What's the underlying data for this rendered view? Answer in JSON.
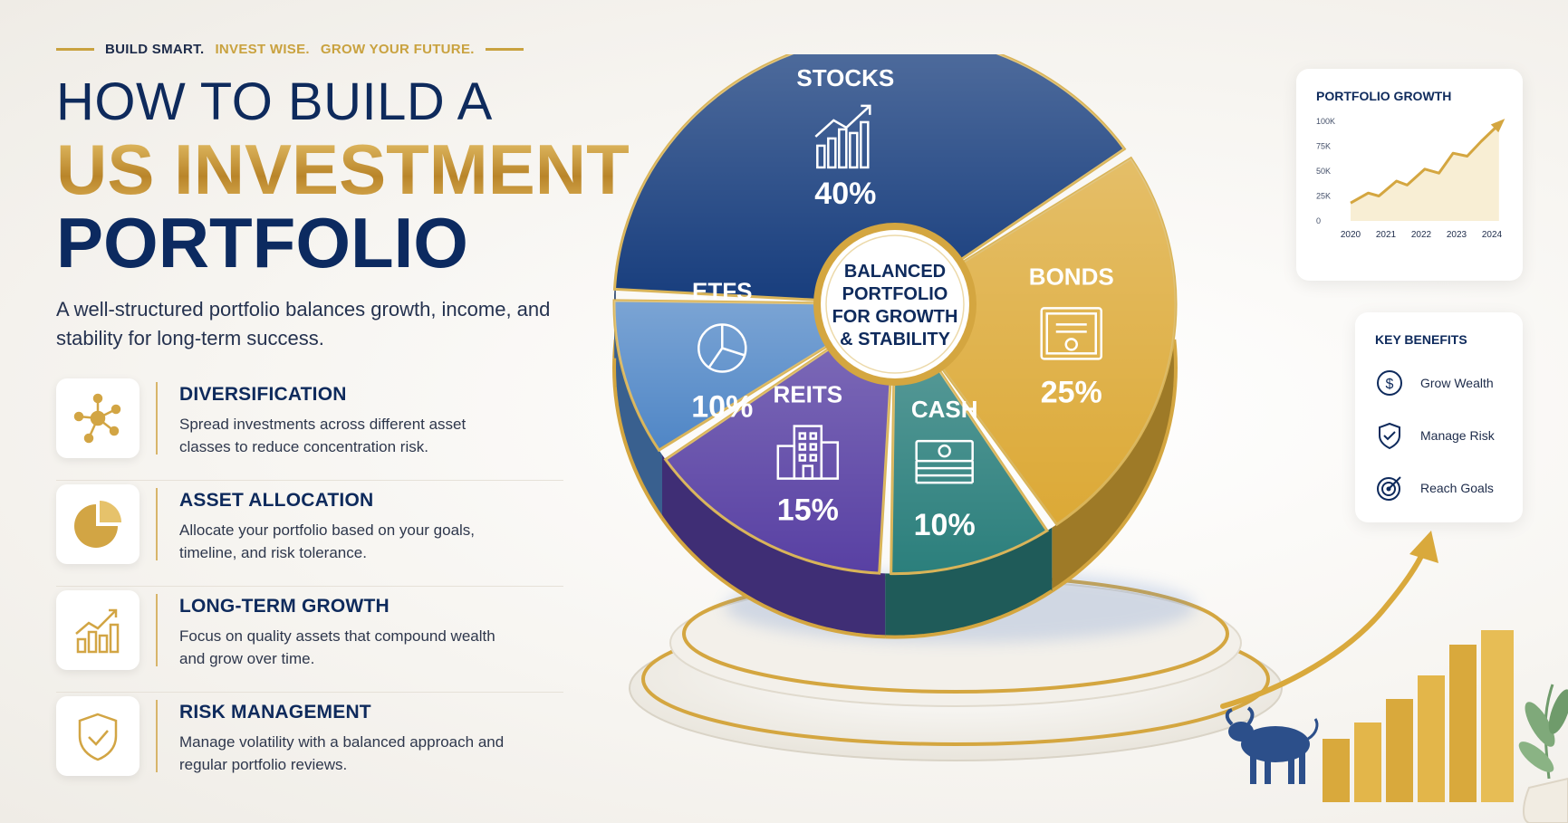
{
  "header": {
    "tagline_part1": "BUILD SMART.",
    "tagline_part2": "INVEST WISE.",
    "tagline_part3": "GROW YOUR FUTURE.",
    "title_line1": "HOW TO BUILD A",
    "title_line2": "US INVESTMENT",
    "title_line3": "PORTFOLIO",
    "subtitle": "A well-structured portfolio balances growth, income, and stability for long-term success."
  },
  "features": [
    {
      "icon": "network-icon",
      "title": "DIVERSIFICATION",
      "desc": "Spread investments across different asset classes to reduce concentration risk."
    },
    {
      "icon": "pie-icon",
      "title": "ASSET ALLOCATION",
      "desc": "Allocate your portfolio based on your goals, timeline, and risk tolerance."
    },
    {
      "icon": "growth-bars-icon",
      "title": "LONG-TERM GROWTH",
      "desc": "Focus on quality assets that compound wealth and grow over time."
    },
    {
      "icon": "shield-check-icon",
      "title": "RISK MANAGEMENT",
      "desc": "Manage volatility with a balanced approach and regular portfolio reviews."
    }
  ],
  "chart_data": [
    {
      "type": "pie",
      "center_label": "BALANCED PORTFOLIO FOR GROWTH & STABILITY",
      "slices": [
        {
          "label": "STOCKS",
          "value": 40,
          "value_label": "40%",
          "color": "#173d7d",
          "icon": "growth-chart-icon"
        },
        {
          "label": "BONDS",
          "value": 25,
          "value_label": "25%",
          "color": "#dca936",
          "icon": "certificate-icon"
        },
        {
          "label": "CASH",
          "value": 10,
          "value_label": "10%",
          "color": "#2b7f7c",
          "icon": "cash-stack-icon"
        },
        {
          "label": "REITS",
          "value": 15,
          "value_label": "15%",
          "color": "#5840a3",
          "icon": "buildings-icon"
        },
        {
          "label": "ETFS",
          "value": 10,
          "value_label": "10%",
          "color": "#4f86c6",
          "icon": "pie-outline-icon"
        }
      ]
    },
    {
      "type": "line",
      "title": "PORTFOLIO GROWTH",
      "x": [
        "2020",
        "2021",
        "2022",
        "2023",
        "2024"
      ],
      "y_ticks": [
        "0",
        "25K",
        "50K",
        "75K",
        "100K"
      ],
      "ylim": [
        0,
        100000
      ],
      "points": [
        {
          "x": 2020.0,
          "y": 18000
        },
        {
          "x": 2020.5,
          "y": 28000
        },
        {
          "x": 2020.8,
          "y": 25000
        },
        {
          "x": 2021.3,
          "y": 40000
        },
        {
          "x": 2021.6,
          "y": 36000
        },
        {
          "x": 2022.1,
          "y": 52000
        },
        {
          "x": 2022.5,
          "y": 48000
        },
        {
          "x": 2022.9,
          "y": 68000
        },
        {
          "x": 2023.3,
          "y": 65000
        },
        {
          "x": 2023.7,
          "y": 80000
        },
        {
          "x": 2024.2,
          "y": 97000
        }
      ]
    }
  ],
  "benefits": {
    "title": "KEY BENEFITS",
    "items": [
      {
        "label": "Grow Wealth",
        "icon": "dollar-circle-icon"
      },
      {
        "label": "Manage Risk",
        "icon": "shield-check-icon"
      },
      {
        "label": "Reach Goals",
        "icon": "target-icon"
      }
    ]
  },
  "colors": {
    "navy": "#0e2a5c",
    "gold": "#c9a23f"
  }
}
